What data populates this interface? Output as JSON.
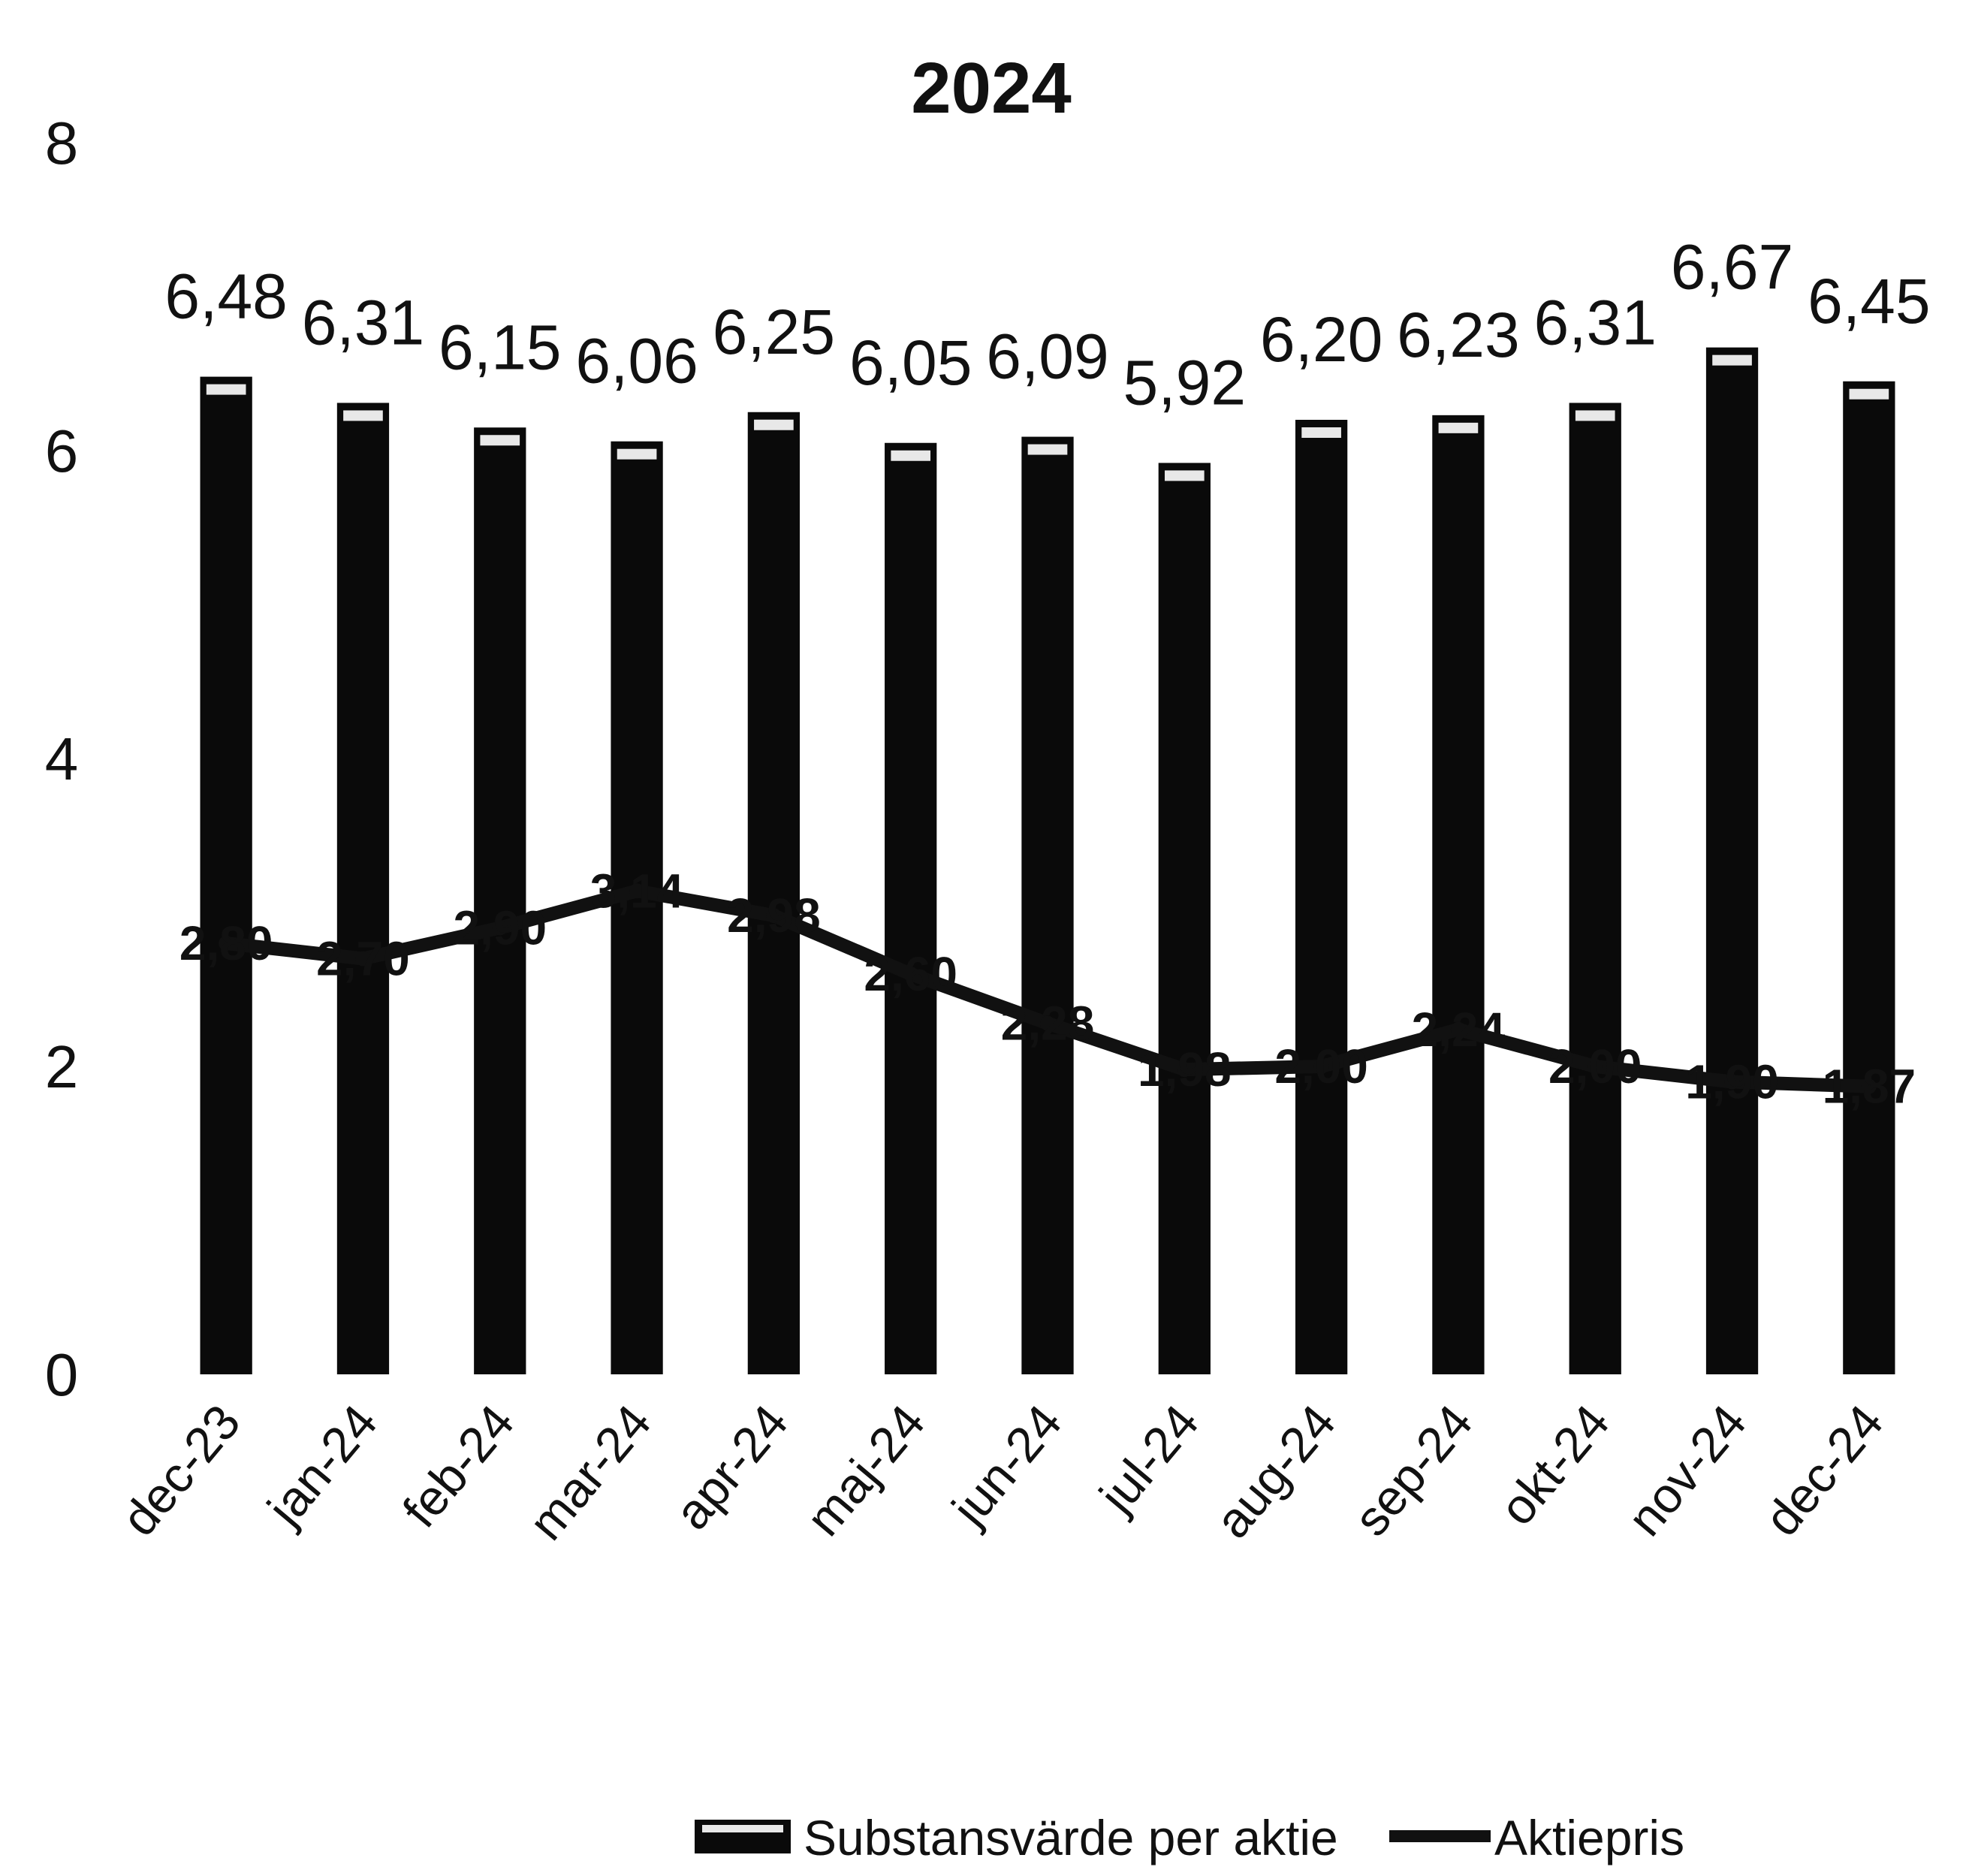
{
  "chart_data": {
    "type": "bar",
    "title": "2024",
    "categories": [
      "dec-23",
      "jan-24",
      "feb-24",
      "mar-24",
      "apr-24",
      "maj-24",
      "jun-24",
      "jul-24",
      "aug-24",
      "sep-24",
      "okt-24",
      "nov-24",
      "dec-24"
    ],
    "ylim": [
      0,
      8
    ],
    "yticks": [
      "0",
      "2",
      "4",
      "6",
      "8"
    ],
    "series": [
      {
        "name": "Substansvärde per aktie",
        "type": "bar",
        "values": [
          6.48,
          6.31,
          6.15,
          6.06,
          6.25,
          6.05,
          6.09,
          5.92,
          6.2,
          6.23,
          6.31,
          6.67,
          6.45
        ],
        "labels": [
          "6,48",
          "6,31",
          "6,15",
          "6,06",
          "6,25",
          "6,05",
          "6,09",
          "5,92",
          "6,20",
          "6,23",
          "6,31",
          "6,67",
          "6,45"
        ]
      },
      {
        "name": "Aktiepris",
        "type": "line",
        "values": [
          2.8,
          2.7,
          2.9,
          3.14,
          2.98,
          2.6,
          2.28,
          1.98,
          2.0,
          2.24,
          2.0,
          1.9,
          1.87
        ],
        "labels": [
          "2,80",
          "2,70",
          "2,90",
          "3,14",
          "2,98",
          "2,60",
          "2,28",
          "1,98",
          "2,00",
          "2,24",
          "2,00",
          "1,90",
          "1,87"
        ]
      }
    ],
    "legend_position": "bottom",
    "grid": false,
    "colors": {
      "bar": "#0a0a0a",
      "line": "#111111",
      "bar_cap": "#e8e8e8"
    }
  }
}
